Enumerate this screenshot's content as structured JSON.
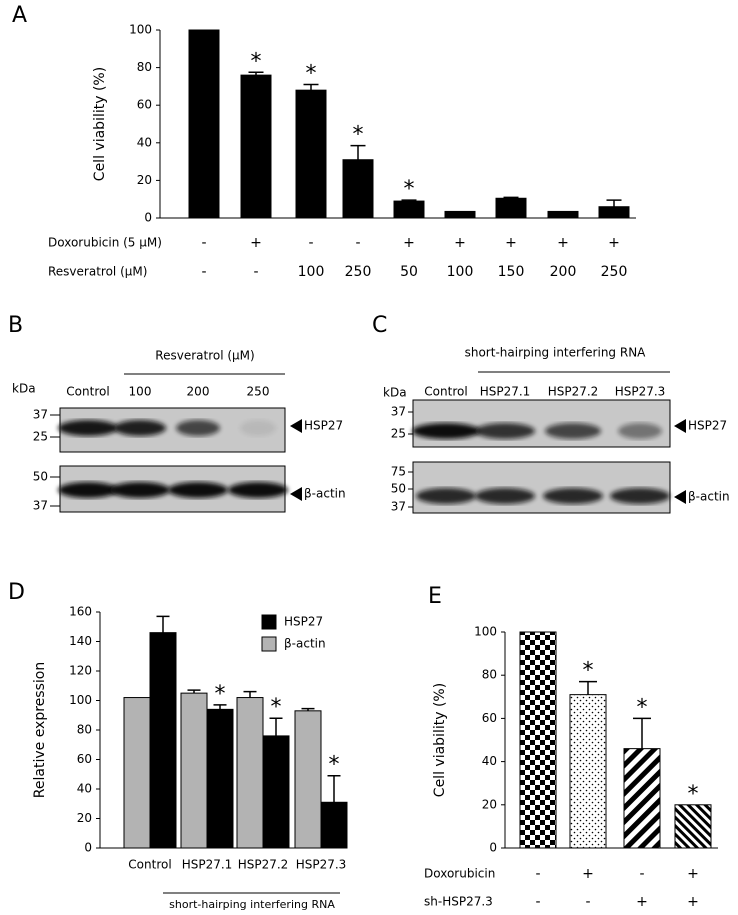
{
  "chart_data": [
    {
      "type": "bar",
      "label": "A",
      "ylabel": "Cell viability  (%)",
      "values": [
        100,
        76,
        68,
        31,
        9,
        3.5,
        10.5,
        3.5,
        6
      ],
      "errors": [
        0,
        1.5,
        3,
        7.5,
        0.5,
        0,
        0.5,
        0,
        3.5
      ],
      "value_marks": [
        null,
        "*",
        "*",
        "*",
        "*",
        null,
        null,
        null,
        null
      ],
      "color": "#000000",
      "ylim": [
        0,
        100
      ],
      "yticks": [
        0,
        20,
        40,
        60,
        80,
        100
      ],
      "rows": [
        {
          "label": "Doxorubicin (5 μM)",
          "values": [
            "-",
            "+",
            "-",
            "-",
            "+",
            "+",
            "+",
            "+",
            "+"
          ]
        },
        {
          "label": "Resveratrol (μM)",
          "values": [
            "-",
            "-",
            "100",
            "250",
            "50",
            "100",
            "150",
            "200",
            "250"
          ]
        }
      ]
    },
    {
      "type": "grouped_bar",
      "label": "D",
      "ylabel": "Relative expression",
      "categories": [
        "Control",
        "HSP27.1",
        "HSP27.2",
        "HSP27.3"
      ],
      "group_label": "short-hairping interfering RNA",
      "series": [
        {
          "name": "HSP27",
          "color": "#000000",
          "values": [
            146,
            94,
            76,
            31
          ],
          "errors": [
            11,
            3,
            12,
            18
          ],
          "value_marks": [
            null,
            "*",
            "*",
            "*"
          ]
        },
        {
          "name": "β-actin",
          "color": "#b3b3b3",
          "values": [
            102,
            105,
            102,
            93
          ],
          "errors": [
            0,
            2,
            4,
            1.5
          ]
        }
      ],
      "ylim": [
        0,
        160
      ],
      "yticks": [
        0,
        20,
        40,
        60,
        80,
        100,
        120,
        140,
        160
      ],
      "legend": "upper right"
    },
    {
      "type": "pattern_bar",
      "label": "E",
      "ylabel": "Cell viability  (%)",
      "values": [
        100,
        71,
        46,
        20
      ],
      "errors": [
        0,
        6,
        14,
        0
      ],
      "value_marks": [
        null,
        "*",
        "*",
        "*"
      ],
      "patterns": [
        "checker",
        "dots",
        "stripes",
        "fine-stripes"
      ],
      "ylim": [
        0,
        100
      ],
      "yticks": [
        0,
        20,
        40,
        60,
        80,
        100
      ],
      "rows": [
        {
          "label": "Doxorubicin",
          "values": [
            "-",
            "+",
            "-",
            "+"
          ]
        },
        {
          "label": "sh-HSP27.3",
          "values": [
            "-",
            "-",
            "+",
            "+"
          ]
        }
      ]
    }
  ],
  "blots": [
    {
      "label": "B",
      "header": "Resveratrol (μM)",
      "unit": "kDa",
      "lanes": [
        "Control",
        "100",
        "200",
        "250"
      ],
      "panels": [
        {
          "markers": [
            "37",
            "25"
          ],
          "band": "HSP27"
        },
        {
          "markers": [
            "50",
            "37"
          ],
          "band": "β-actin"
        }
      ]
    },
    {
      "label": "C",
      "header": "short-hairping interfering RNA",
      "unit": "kDa",
      "lanes": [
        "Control",
        "HSP27.1",
        "HSP27.2",
        "HSP27.3"
      ],
      "panels": [
        {
          "markers": [
            "37",
            "25"
          ],
          "band": "HSP27"
        },
        {
          "markers": [
            "75",
            "50",
            "37"
          ],
          "band": "β-actin"
        }
      ]
    }
  ]
}
